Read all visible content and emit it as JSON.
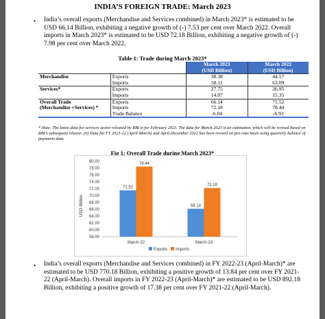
{
  "title": "INDIA’S FOREIGN TRADE: March 2023",
  "paragraphs": [
    "India’s overall exports (Merchandise and Services combined) in March 2023* is estimated to be USD 66.14 Billion, exhibiting a negative growth of (-) 7.53 per cent over March 2022. Overall imports in March 2023* is estimated to be USD 72.18 Billion, exhibiting a negative growth of (-) 7.98 per cent over March 2022.",
    "India’s overall exports (Merchandise and Services combined) in FY 2022-23 (April-March)* are estimated to be USD 770.18 Billion, exhibiting a positive growth of 13.84 per cent over FY 2021-22 (April-March). Overall imports in FY 2022-23 (April-March)* are estimated to be USD 892.18 Billion, exhibiting a positive growth of 17.38 per cent over FY 2021-22 (April-March)."
  ],
  "bullet_glyph": "•",
  "table": {
    "caption": "Table 1: Trade during March 2023*",
    "headers": [
      "March 2023",
      "(USD Billion)",
      "March 2022",
      "(USD Billion)"
    ],
    "rows": [
      {
        "label": "Merchandise",
        "sub": "Exports",
        "v2023": "38.38",
        "v2022": "44.57"
      },
      {
        "label": "",
        "sub": "Imports",
        "v2023": "58.11",
        "v2022": "63.09"
      },
      {
        "label": "Services*",
        "sub": "Exports",
        "v2023": "27.75",
        "v2022": "26.95"
      },
      {
        "label": "",
        "sub": "Imports",
        "v2023": "14.07",
        "v2022": "15.35"
      },
      {
        "label": "Overall Trade",
        "sub": "Exports",
        "v2023": "66.14",
        "v2022": "71.52"
      },
      {
        "label": "(Merchandise +Services) *",
        "sub": "Imports",
        "v2023": "72.18",
        "v2022": "78.44"
      },
      {
        "label": "",
        "sub": "Trade Balance",
        "v2023": "-6.04",
        "v2022": "-6.92"
      }
    ]
  },
  "note": "* Note: The latest data for services sector released by RBI is for February 2023. The data for March 2023 is an estimation, which will be revised based on RBI’s subsequent release. (ii) Data for FY 2021-22 (April-March) and April-December 2022 has been revised on pro-rata basis using quarterly balance of payments data.",
  "figure_caption": "Fig 1: Overall Trade during March 2023*",
  "chart_data": {
    "type": "bar",
    "categories": [
      "March-22",
      "March-23"
    ],
    "series": [
      {
        "name": "Exports",
        "values": [
          71.52,
          66.14
        ],
        "color": "#4f8fd6"
      },
      {
        "name": "Imports",
        "values": [
          78.44,
          72.18
        ],
        "color": "#ef7d22"
      }
    ],
    "value_labels": [
      [
        "71.52",
        "66.14"
      ],
      [
        "78.44",
        "72.18"
      ]
    ],
    "ylabel": "USD Billion",
    "ylim": [
      58,
      80
    ],
    "yticks": [
      "58.00",
      "60.00",
      "62.00",
      "64.00",
      "66.00",
      "68.00",
      "70.00",
      "72.00",
      "74.00",
      "76.00",
      "78.00",
      "80.00"
    ],
    "ytick_values": [
      58,
      60,
      62,
      64,
      66,
      68,
      70,
      72,
      74,
      76,
      78,
      80
    ],
    "legend_position": "bottom",
    "grid": false
  }
}
